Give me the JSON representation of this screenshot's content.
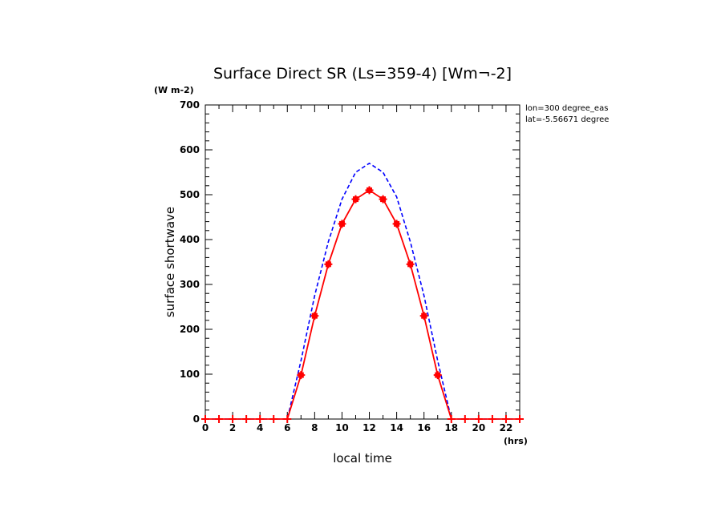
{
  "chart_data": {
    "type": "line",
    "title": "Surface Direct SR (Ls=359-4) [Wm¬-2]",
    "y_unit": "(W m-2)",
    "x_unit": "(hrs)",
    "xlabel": "local time",
    "ylabel": "surface shortwave",
    "info_lines": [
      "lon=300 degree_eas",
      "lat=-5.56671 degree"
    ],
    "xlim": [
      0,
      23
    ],
    "ylim": [
      0,
      700
    ],
    "x_ticks": [
      0,
      2,
      4,
      6,
      8,
      10,
      12,
      14,
      16,
      18,
      20,
      22
    ],
    "y_ticks": [
      0,
      100,
      200,
      300,
      400,
      500,
      600,
      700
    ],
    "grid": false,
    "colors": {
      "red": "#ff0000",
      "blue": "#0000ff",
      "axis": "#000000"
    },
    "series": [
      {
        "style": "dashed-blue",
        "x": [
          0,
          1,
          2,
          3,
          4,
          5,
          6,
          7,
          8,
          9,
          10,
          11,
          12,
          13,
          14,
          15,
          16,
          17,
          18,
          19,
          20,
          21,
          22,
          23
        ],
        "values": [
          0,
          0,
          0,
          0,
          0,
          0,
          0,
          130,
          275,
          395,
          490,
          550,
          570,
          550,
          495,
          395,
          275,
          130,
          0,
          0,
          0,
          0,
          0,
          0
        ]
      },
      {
        "style": "solid-red-with-error-markers",
        "x": [
          0,
          1,
          2,
          3,
          4,
          5,
          6,
          7,
          8,
          9,
          10,
          11,
          12,
          13,
          14,
          15,
          16,
          17,
          18,
          19,
          20,
          21,
          22,
          23
        ],
        "values": [
          0,
          0,
          0,
          0,
          0,
          0,
          0,
          98,
          230,
          345,
          435,
          490,
          510,
          490,
          435,
          345,
          230,
          98,
          0,
          0,
          0,
          0,
          0,
          0
        ]
      }
    ]
  }
}
